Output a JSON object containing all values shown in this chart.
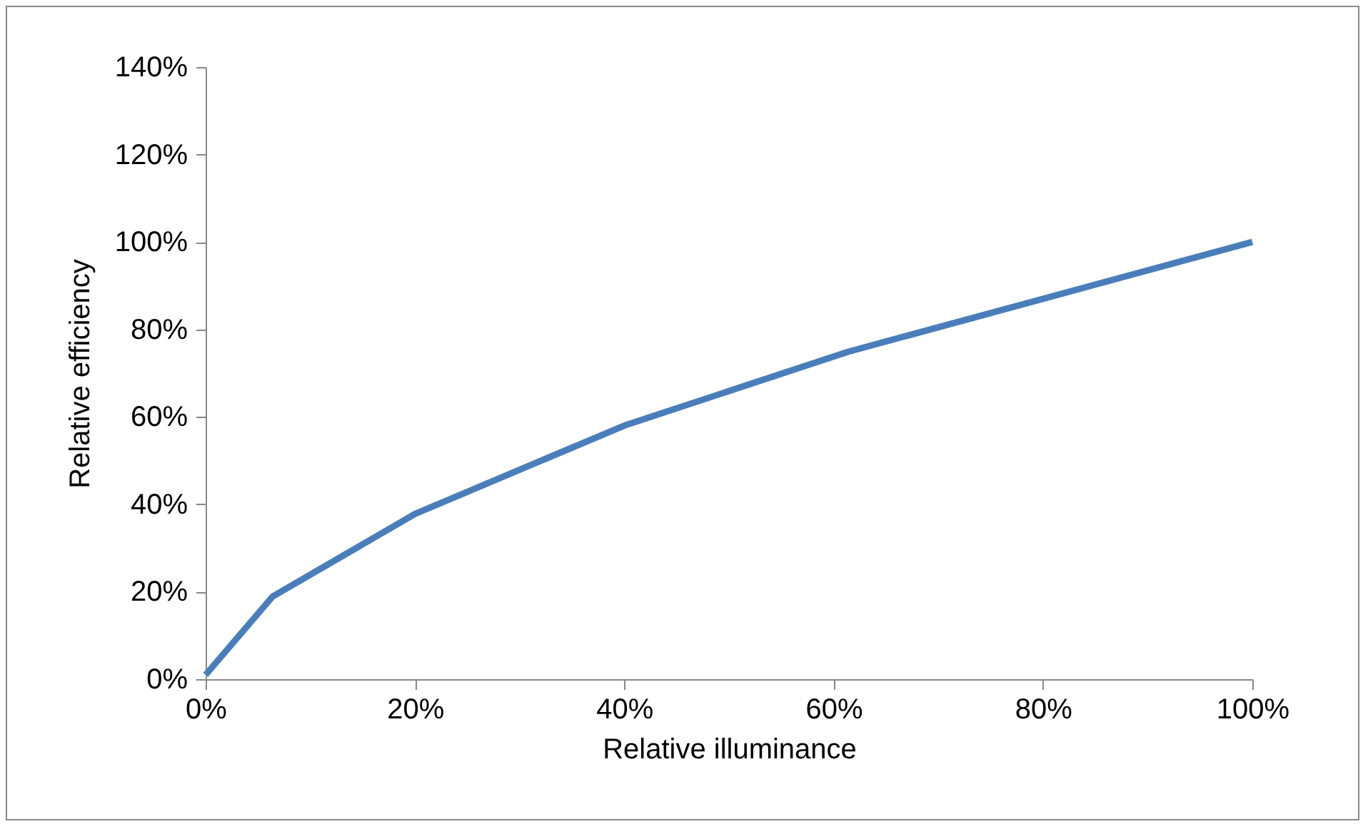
{
  "chart_data": {
    "type": "line",
    "xlabel": "Relative illuminance",
    "ylabel": "Relative efficiency",
    "x": [
      0,
      6.4,
      20,
      40,
      61.4,
      100
    ],
    "series": [
      {
        "color": "#4a7ebb",
        "values": [
          1,
          18.9,
          37.8,
          58,
          74.9,
          100
        ]
      }
    ],
    "xlim": [
      0,
      100
    ],
    "ylim": [
      0,
      140
    ],
    "xticks": [
      {
        "value": 0,
        "label": "0%"
      },
      {
        "value": 20,
        "label": "20%"
      },
      {
        "value": 40,
        "label": "40%"
      },
      {
        "value": 60,
        "label": "60%"
      },
      {
        "value": 80,
        "label": "80%"
      },
      {
        "value": 100,
        "label": "100%"
      }
    ],
    "yticks": [
      {
        "value": 0,
        "label": "0%"
      },
      {
        "value": 20,
        "label": "20%"
      },
      {
        "value": 40,
        "label": "40%"
      },
      {
        "value": 60,
        "label": "60%"
      },
      {
        "value": 80,
        "label": "80%"
      },
      {
        "value": 100,
        "label": "100%"
      },
      {
        "value": 120,
        "label": "120%"
      },
      {
        "value": 140,
        "label": "140%"
      }
    ],
    "grid": false,
    "marker": "none",
    "line_style": "solid"
  }
}
